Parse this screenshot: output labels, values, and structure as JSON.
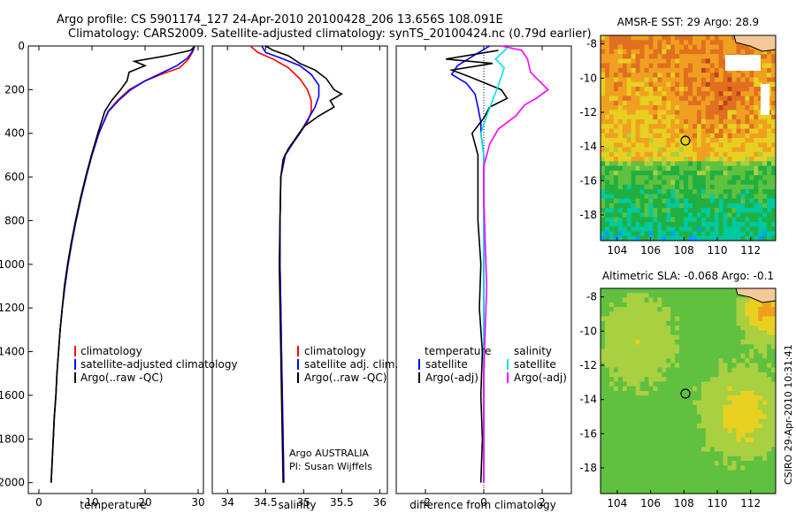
{
  "header": {
    "line1": "Argo profile: CS 5901174_127 24-Apr-2010 20100428_206 13.656S 108.091E",
    "line2": "Climatology: CARS2009. Satellite-adjusted climatology: synTS_20100424.nc (0.79d earlier)"
  },
  "depth_ticks": [
    0,
    200,
    400,
    600,
    800,
    1000,
    1200,
    1400,
    1600,
    1800,
    2000
  ],
  "colors": {
    "climatology": "#ff0000",
    "satellite": "#0000ff",
    "argo": "#000000",
    "sal_satellite": "#00e5e5",
    "sal_argo": "#ff00ff",
    "zero_line": "#000000"
  },
  "chart_data": [
    {
      "type": "line",
      "id": "temperature",
      "xlabel": "temperature",
      "ylabel": "",
      "xlim": [
        -2,
        31
      ],
      "ylim": [
        2050,
        0
      ],
      "xticks": [
        0,
        10,
        20,
        30
      ],
      "legend": {
        "position": "bottom-left",
        "entries": [
          "climatology",
          "satellite-adjusted climatology",
          "Argo(..raw -QC)"
        ]
      },
      "series": [
        {
          "name": "climatology",
          "color": "#ff0000",
          "points": [
            [
              29.4,
              0
            ],
            [
              29.0,
              25
            ],
            [
              28.2,
              60
            ],
            [
              26.5,
              100
            ],
            [
              23,
              130
            ],
            [
              20,
              160
            ],
            [
              17,
              200
            ],
            [
              14.8,
              250
            ],
            [
              13,
              300
            ],
            [
              11.3,
              400
            ],
            [
              10,
              500
            ],
            [
              8.9,
              600
            ],
            [
              7.9,
              700
            ],
            [
              7,
              800
            ],
            [
              6.2,
              900
            ],
            [
              5.5,
              1000
            ],
            [
              4.9,
              1100
            ],
            [
              4.4,
              1200
            ],
            [
              4,
              1300
            ],
            [
              3.7,
              1400
            ],
            [
              3.4,
              1500
            ],
            [
              3.2,
              1600
            ],
            [
              2.9,
              1700
            ],
            [
              2.7,
              1800
            ],
            [
              2.5,
              1900
            ],
            [
              2.3,
              2000
            ]
          ]
        },
        {
          "name": "satellite-adjusted climatology",
          "color": "#0000ff",
          "points": [
            [
              29.3,
              0
            ],
            [
              28.9,
              25
            ],
            [
              28,
              55
            ],
            [
              26,
              90
            ],
            [
              23,
              125
            ],
            [
              20,
              160
            ],
            [
              17.3,
              200
            ],
            [
              15,
              250
            ],
            [
              13.1,
              300
            ],
            [
              11.3,
              400
            ],
            [
              10,
              500
            ],
            [
              8.9,
              600
            ],
            [
              7.9,
              700
            ],
            [
              7,
              800
            ],
            [
              6.2,
              900
            ],
            [
              5.5,
              1000
            ],
            [
              4.9,
              1100
            ],
            [
              4.4,
              1200
            ],
            [
              4,
              1300
            ],
            [
              3.7,
              1400
            ],
            [
              3.4,
              1500
            ],
            [
              3.2,
              1600
            ],
            [
              2.9,
              1700
            ],
            [
              2.7,
              1800
            ],
            [
              2.5,
              1900
            ],
            [
              2.3,
              2000
            ]
          ]
        },
        {
          "name": "Argo(..raw -QC)",
          "color": "#000000",
          "points": [
            [
              29.2,
              5
            ],
            [
              28.6,
              20
            ],
            [
              24,
              45
            ],
            [
              18,
              70
            ],
            [
              20,
              90
            ],
            [
              17,
              120
            ],
            [
              16.6,
              160
            ],
            [
              15.4,
              200
            ],
            [
              13.7,
              250
            ],
            [
              12.4,
              300
            ],
            [
              11.1,
              400
            ],
            [
              9.9,
              500
            ],
            [
              8.8,
              600
            ],
            [
              7.8,
              700
            ],
            [
              6.9,
              800
            ],
            [
              6.1,
              900
            ],
            [
              5.4,
              1000
            ],
            [
              4.8,
              1100
            ],
            [
              4.4,
              1200
            ],
            [
              4,
              1300
            ],
            [
              3.7,
              1400
            ],
            [
              3.4,
              1500
            ],
            [
              3.2,
              1600
            ],
            [
              2.9,
              1700
            ],
            [
              2.7,
              1800
            ],
            [
              2.5,
              1900
            ],
            [
              2.3,
              2000
            ]
          ]
        }
      ]
    },
    {
      "type": "line",
      "id": "salinity",
      "xlabel": "salinity",
      "ylabel": "",
      "xlim": [
        33.8,
        36.1
      ],
      "ylim": [
        2050,
        0
      ],
      "xticks": [
        34,
        34.5,
        35,
        35.5,
        36
      ],
      "legend": {
        "position": "bottom-right",
        "entries": [
          "climatology",
          "satellite adj. clim.",
          "Argo(..raw -QC)"
        ]
      },
      "annotation": {
        "line1": "Argo AUSTRALIA",
        "line2": "PI: Susan Wijffels"
      },
      "series": [
        {
          "name": "climatology",
          "color": "#ff0000",
          "points": [
            [
              34.3,
              0
            ],
            [
              34.4,
              30
            ],
            [
              34.6,
              60
            ],
            [
              34.8,
              100
            ],
            [
              34.95,
              150
            ],
            [
              35.05,
              200
            ],
            [
              35.1,
              250
            ],
            [
              35.1,
              300
            ],
            [
              35.05,
              350
            ],
            [
              34.95,
              400
            ],
            [
              34.85,
              450
            ],
            [
              34.75,
              500
            ],
            [
              34.7,
              600
            ],
            [
              34.69,
              800
            ],
            [
              34.69,
              1000
            ],
            [
              34.7,
              1200
            ],
            [
              34.71,
              1400
            ],
            [
              34.72,
              1600
            ],
            [
              34.73,
              1800
            ],
            [
              34.74,
              2000
            ]
          ]
        },
        {
          "name": "satellite adj. clim.",
          "color": "#0000ff",
          "points": [
            [
              34.45,
              0
            ],
            [
              34.5,
              30
            ],
            [
              34.7,
              55
            ],
            [
              34.95,
              90
            ],
            [
              35.1,
              130
            ],
            [
              35.2,
              180
            ],
            [
              35.2,
              230
            ],
            [
              35.15,
              280
            ],
            [
              35.05,
              340
            ],
            [
              34.95,
              400
            ],
            [
              34.85,
              450
            ],
            [
              34.76,
              500
            ],
            [
              34.7,
              600
            ],
            [
              34.69,
              800
            ],
            [
              34.69,
              1000
            ],
            [
              34.7,
              1200
            ],
            [
              34.71,
              1400
            ],
            [
              34.72,
              1600
            ],
            [
              34.73,
              1800
            ],
            [
              34.74,
              2000
            ]
          ]
        },
        {
          "name": "Argo(..raw -QC)",
          "color": "#000000",
          "points": [
            [
              34.5,
              0
            ],
            [
              34.6,
              20
            ],
            [
              34.8,
              45
            ],
            [
              34.95,
              80
            ],
            [
              35.15,
              110
            ],
            [
              35.3,
              150
            ],
            [
              35.4,
              200
            ],
            [
              35.5,
              220
            ],
            [
              35.35,
              250
            ],
            [
              35.4,
              280
            ],
            [
              35.2,
              320
            ],
            [
              35.0,
              370
            ],
            [
              34.9,
              420
            ],
            [
              34.8,
              470
            ],
            [
              34.73,
              520
            ],
            [
              34.7,
              600
            ],
            [
              34.69,
              800
            ],
            [
              34.68,
              1000
            ],
            [
              34.69,
              1200
            ],
            [
              34.7,
              1400
            ],
            [
              34.71,
              1600
            ],
            [
              34.72,
              1800
            ],
            [
              34.73,
              2000
            ]
          ]
        }
      ]
    },
    {
      "type": "line",
      "id": "difference",
      "xlabel": "difference from climatology",
      "ylabel": "",
      "xlim": [
        -3,
        3
      ],
      "ylim": [
        2050,
        0
      ],
      "xticks": [
        -2,
        0,
        2
      ],
      "legend": {
        "position": "bottom",
        "temperature_title": "temperature",
        "salinity_title": "salinity",
        "temperature_entries": [
          "satellite",
          "Argo(-adj)"
        ],
        "salinity_entries": [
          "satellite",
          "Argo(-adj)"
        ]
      },
      "series": [
        {
          "name": "temperature satellite",
          "color": "#0000ff",
          "points": [
            [
              0.2,
              0
            ],
            [
              -0.3,
              40
            ],
            [
              -0.9,
              90
            ],
            [
              -1.1,
              130
            ],
            [
              -0.6,
              170
            ],
            [
              -0.3,
              220
            ],
            [
              -0.2,
              280
            ],
            [
              -0.1,
              350
            ],
            [
              -0.1,
              400
            ],
            [
              0,
              500
            ],
            [
              0,
              700
            ],
            [
              0,
              900
            ],
            [
              0,
              1100
            ],
            [
              0,
              1300
            ],
            [
              0,
              1500
            ],
            [
              0,
              1700
            ],
            [
              0,
              1900
            ],
            [
              0,
              2000
            ]
          ]
        },
        {
          "name": "temperature Argo(-adj)",
          "color": "#000000",
          "points": [
            [
              0.5,
              20
            ],
            [
              -1.3,
              60
            ],
            [
              0.3,
              80
            ],
            [
              -1.1,
              110
            ],
            [
              -0.5,
              140
            ],
            [
              0.6,
              200
            ],
            [
              0.8,
              240
            ],
            [
              0.2,
              280
            ],
            [
              0,
              330
            ],
            [
              -0.4,
              400
            ],
            [
              -0.2,
              500
            ],
            [
              -0.2,
              800
            ],
            [
              -0.1,
              1000
            ],
            [
              -0.15,
              1200
            ],
            [
              -0.05,
              1400
            ],
            [
              -0.1,
              1600
            ],
            [
              -0.05,
              1800
            ],
            [
              -0.1,
              2000
            ]
          ]
        },
        {
          "name": "salinity satellite",
          "color": "#00e5e5",
          "points": [
            [
              0.8,
              10
            ],
            [
              0.4,
              60
            ],
            [
              0.7,
              100
            ],
            [
              0.5,
              180
            ],
            [
              0.3,
              250
            ],
            [
              0.1,
              320
            ],
            [
              -0.1,
              400
            ],
            [
              0,
              500
            ],
            [
              0,
              700
            ],
            [
              0,
              1000
            ],
            [
              0,
              1300
            ],
            [
              0,
              1600
            ],
            [
              0,
              2000
            ]
          ]
        },
        {
          "name": "salinity Argo(-adj)",
          "color": "#ff00ff",
          "points": [
            [
              0.6,
              0
            ],
            [
              1.3,
              20
            ],
            [
              1.5,
              60
            ],
            [
              1.6,
              120
            ],
            [
              2.2,
              200
            ],
            [
              1.8,
              240
            ],
            [
              1.4,
              270
            ],
            [
              1.1,
              320
            ],
            [
              0.5,
              380
            ],
            [
              0.2,
              450
            ],
            [
              0,
              550
            ],
            [
              0,
              700
            ],
            [
              0.05,
              900
            ],
            [
              0.1,
              1100
            ],
            [
              0.05,
              1300
            ],
            [
              0,
              1500
            ],
            [
              0,
              1700
            ],
            [
              0,
              1900
            ],
            [
              0,
              2000
            ]
          ]
        }
      ]
    },
    {
      "type": "heatmap",
      "id": "sst_map",
      "title": "AMSR-E SST: 29 Argo: 28.9",
      "xlim": [
        103,
        113.5
      ],
      "ylim": [
        -19.5,
        -7.5
      ],
      "xticks": [
        104,
        106,
        108,
        110,
        112
      ],
      "yticks": [
        -8,
        -10,
        -12,
        -14,
        -16,
        -18
      ],
      "marker": {
        "lon": 108.091,
        "lat": -13.656
      },
      "palette": [
        "#00a0ff",
        "#00c8a0",
        "#20b040",
        "#60c040",
        "#a8d040",
        "#e8d020",
        "#f0a020",
        "#e07020",
        "#c04020",
        "#a02010"
      ]
    },
    {
      "type": "heatmap",
      "id": "sla_map",
      "title": "Altimetric SLA: -0.068 Argo: -0.1",
      "xlim": [
        103,
        113.5
      ],
      "ylim": [
        -19.5,
        -7.5
      ],
      "xticks": [
        104,
        106,
        108,
        110,
        112
      ],
      "yticks": [
        -8,
        -10,
        -12,
        -14,
        -16,
        -18
      ],
      "marker": {
        "lon": 108.091,
        "lat": -13.656
      },
      "palette": [
        "#30b030",
        "#60c040",
        "#a8d040",
        "#e8d020",
        "#f0a020",
        "#e07020",
        "#c04020"
      ]
    }
  ],
  "side_text": "CSIRO 29-Apr-2010 10:31:41"
}
